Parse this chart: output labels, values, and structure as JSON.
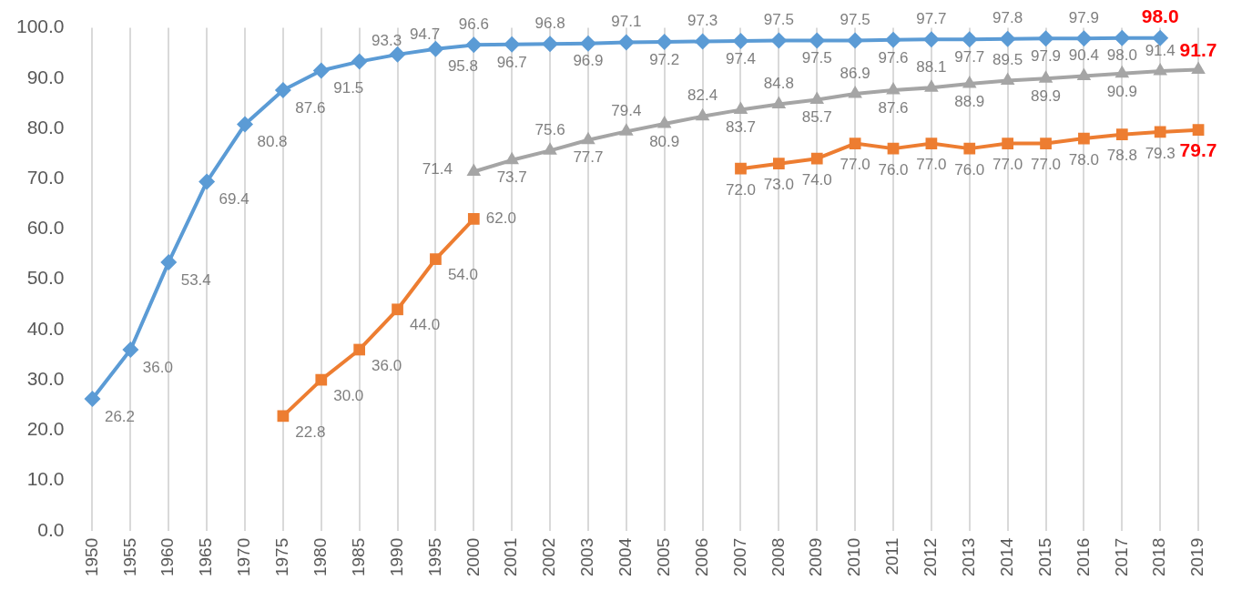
{
  "chart_data": {
    "type": "line",
    "categories": [
      "1950",
      "1955",
      "1960",
      "1965",
      "1970",
      "1975",
      "1980",
      "1985",
      "1990",
      "1995",
      "2000",
      "2001",
      "2002",
      "2003",
      "2004",
      "2005",
      "2006",
      "2007",
      "2008",
      "2009",
      "2010",
      "2011",
      "2012",
      "2013",
      "2014",
      "2015",
      "2016",
      "2017",
      "2018",
      "2019"
    ],
    "series": [
      {
        "color": "#5b9bd5",
        "marker": "diamond",
        "values": [
          26.2,
          36.0,
          53.4,
          69.4,
          80.8,
          87.6,
          91.5,
          93.3,
          94.7,
          95.8,
          96.6,
          96.7,
          96.8,
          96.9,
          97.1,
          97.2,
          97.3,
          97.4,
          97.5,
          97.5,
          97.5,
          97.6,
          97.7,
          97.7,
          97.8,
          97.9,
          97.9,
          98.0,
          98.0,
          null
        ],
        "value_labels": [
          "26.2",
          "36.0",
          "53.4",
          "69.4",
          "80.8",
          "87.6",
          "91.5",
          "93.3",
          "94.7",
          "95.8",
          "96.6",
          "96.7",
          "96.8",
          "96.9",
          "97.1",
          "97.2",
          "97.3",
          "97.4",
          "97.5",
          "97.5",
          "97.5",
          "97.6",
          "97.7",
          "97.7",
          "97.8",
          "97.9",
          "97.9",
          "98.0",
          "98.0",
          null
        ]
      },
      {
        "color": "#ed7d31",
        "marker": "square",
        "values": [
          null,
          null,
          null,
          null,
          null,
          22.8,
          30.0,
          36.0,
          44.0,
          54.0,
          62.0,
          null,
          null,
          null,
          null,
          null,
          null,
          72.0,
          73.0,
          74.0,
          77.0,
          76.0,
          77.0,
          76.0,
          77.0,
          77.0,
          78.0,
          78.8,
          79.3,
          79.7
        ],
        "value_labels": [
          null,
          null,
          null,
          null,
          null,
          "22.8",
          "30.0",
          "36.0",
          "44.0",
          "54.0",
          "62.0",
          null,
          null,
          null,
          null,
          null,
          null,
          "72.0",
          "73.0",
          "74.0",
          "77.0",
          "76.0",
          "77.0",
          "76.0",
          "77.0",
          "77.0",
          "78.0",
          "78.8",
          "79.3",
          "79.7"
        ]
      },
      {
        "color": "#a5a5a5",
        "marker": "triangle",
        "values": [
          null,
          null,
          null,
          null,
          null,
          null,
          null,
          null,
          null,
          null,
          71.4,
          73.7,
          75.6,
          77.7,
          79.4,
          80.9,
          82.4,
          83.7,
          84.8,
          85.7,
          86.9,
          87.6,
          88.1,
          88.9,
          89.5,
          89.9,
          90.4,
          90.9,
          91.4,
          91.7
        ],
        "value_labels": [
          null,
          null,
          null,
          null,
          null,
          null,
          null,
          null,
          null,
          null,
          "71.4",
          "73.7",
          "75.6",
          "77.7",
          "79.4",
          "80.9",
          "82.4",
          "83.7",
          "84.8",
          "85.7",
          "86.9",
          "87.6",
          "88.1",
          "88.9",
          "89.5",
          "89.9",
          "90.4",
          "90.9",
          "91.4",
          "91.7"
        ]
      }
    ],
    "ylim": [
      0,
      100
    ],
    "yticks": [
      {
        "value": 0,
        "label": "0.0"
      },
      {
        "value": 10,
        "label": "10.0"
      },
      {
        "value": 20,
        "label": "20.0"
      },
      {
        "value": 30,
        "label": "30.0"
      },
      {
        "value": 40,
        "label": "40.0"
      },
      {
        "value": 50,
        "label": "50.0"
      },
      {
        "value": 60,
        "label": "60.0"
      },
      {
        "value": 70,
        "label": "70.0"
      },
      {
        "value": 80,
        "label": "80.0"
      },
      {
        "value": 90,
        "label": "90.0"
      },
      {
        "value": 100,
        "label": "100.0"
      }
    ],
    "grid": "x",
    "legend": false
  }
}
